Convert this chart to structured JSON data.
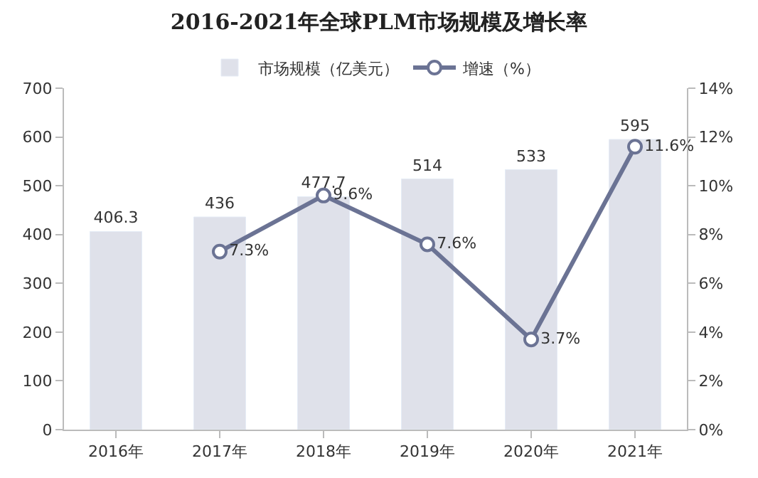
{
  "chart_data": {
    "type": "bar",
    "title": "2016-2021年全球PLM市场规模及增长率",
    "categories": [
      "2016年",
      "2017年",
      "2018年",
      "2019年",
      "2020年",
      "2021年"
    ],
    "series": [
      {
        "name": "市场规模（亿美元）",
        "color": "#dfe1ea",
        "values": [
          406.3,
          436,
          477.7,
          514,
          533,
          595
        ]
      },
      {
        "name": "增速（%）",
        "type": "line",
        "axis": "y2",
        "color": "#6b7394",
        "marker": "circle",
        "values": [
          null,
          7.3,
          9.6,
          7.6,
          3.7,
          11.6
        ],
        "value_labels": [
          null,
          "7.3%",
          "9.6%",
          "7.6%",
          "3.7%",
          "11.6%"
        ]
      }
    ],
    "data_labels": true,
    "ylim": [
      0,
      700
    ],
    "yticks": [
      0,
      100,
      200,
      300,
      400,
      500,
      600,
      700
    ],
    "y2lim": [
      0,
      14
    ],
    "y2ticks": [
      {
        "value": 0,
        "label": "0%"
      },
      {
        "value": 2,
        "label": "2%"
      },
      {
        "value": 4,
        "label": "4%"
      },
      {
        "value": 6,
        "label": "6%"
      },
      {
        "value": 8,
        "label": "8%"
      },
      {
        "value": 10,
        "label": "10%"
      },
      {
        "value": 12,
        "label": "12%"
      },
      {
        "value": 14,
        "label": "14%"
      }
    ],
    "legend": "top"
  }
}
